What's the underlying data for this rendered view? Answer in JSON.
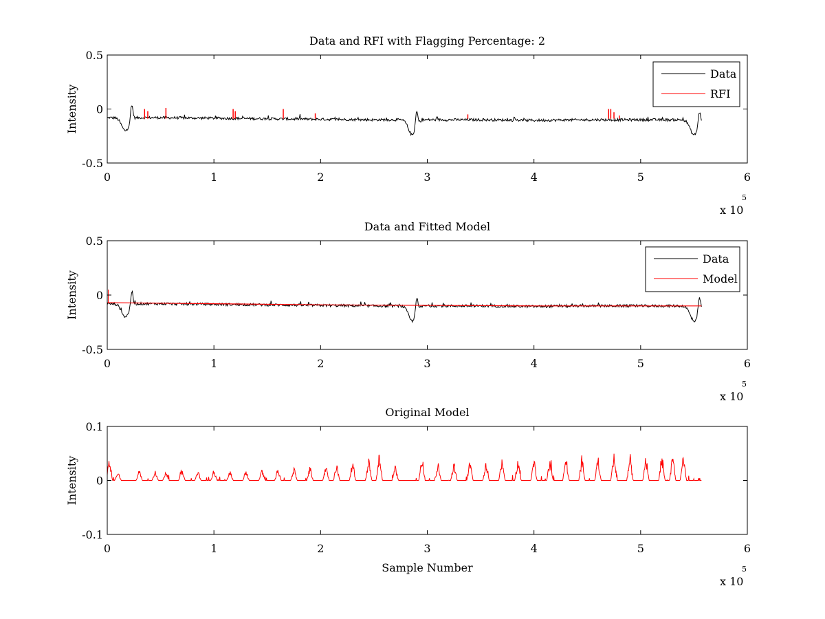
{
  "figure": {
    "background": "#ffffff",
    "data_color": "#000000",
    "model_color": "#ff0000"
  },
  "chart_data": [
    {
      "type": "line",
      "title": "Data and RFI with Flagging Percentage: 2",
      "xlabel": "",
      "ylabel": "Intensity",
      "xlim": [
        0,
        6
      ],
      "ylim": [
        -0.5,
        0.5
      ],
      "xticks": [
        "0",
        "1",
        "2",
        "3",
        "4",
        "5",
        "6"
      ],
      "yticks": [
        "0.5",
        "0",
        "-0.5"
      ],
      "x_multiplier": {
        "base": "x 10",
        "exponent": "5"
      },
      "legend": {
        "position": "top-right",
        "entries": [
          "Data",
          "RFI"
        ]
      },
      "series": [
        {
          "name": "Data",
          "color": "#000000",
          "baseline_x": [
            0,
            0.1,
            0.5,
            1.0,
            1.5,
            2.0,
            2.5,
            2.8,
            3.0,
            3.5,
            4.0,
            4.5,
            5.0,
            5.4,
            5.55
          ],
          "baseline_y": [
            -0.08,
            -0.08,
            -0.08,
            -0.085,
            -0.09,
            -0.095,
            -0.1,
            -0.1,
            -0.1,
            -0.1,
            -0.105,
            -0.1,
            -0.1,
            -0.1,
            -0.1
          ],
          "noise": 0.012,
          "dips": [
            {
              "x": 0.17,
              "y": -0.2
            },
            {
              "x": 2.86,
              "y": -0.24
            },
            {
              "x": 5.5,
              "y": -0.24
            }
          ],
          "peaks": [
            {
              "x": 0.23,
              "y": 0.06
            },
            {
              "x": 2.9,
              "y": 0.05
            },
            {
              "x": 5.55,
              "y": 0.02
            }
          ],
          "x_end": 5.57
        },
        {
          "name": "RFI",
          "color": "#ff0000",
          "spikes_x": [
            0.35,
            0.38,
            0.55,
            1.18,
            1.2,
            1.65,
            1.95,
            3.38,
            4.7,
            4.72,
            4.75,
            4.8
          ],
          "spikes_y": [
            0.0,
            -0.02,
            0.01,
            0.0,
            -0.02,
            0.0,
            -0.04,
            -0.05,
            0.0,
            0.0,
            -0.03,
            -0.06
          ]
        }
      ]
    },
    {
      "type": "line",
      "title": "Data and Fitted Model",
      "xlabel": "",
      "ylabel": "Intensity",
      "xlim": [
        0,
        6
      ],
      "ylim": [
        -0.5,
        0.5
      ],
      "xticks": [
        "0",
        "1",
        "2",
        "3",
        "4",
        "5",
        "6"
      ],
      "yticks": [
        "0.5",
        "0",
        "-0.5"
      ],
      "x_multiplier": {
        "base": "x 10",
        "exponent": "5"
      },
      "legend": {
        "position": "top-right",
        "entries": [
          "Data",
          "Model"
        ]
      },
      "series": [
        {
          "name": "Data",
          "color": "#000000",
          "baseline_x": [
            0,
            0.1,
            0.5,
            1.0,
            1.5,
            2.0,
            2.5,
            2.8,
            3.0,
            3.5,
            4.0,
            4.5,
            5.0,
            5.4,
            5.55
          ],
          "baseline_y": [
            -0.08,
            -0.08,
            -0.08,
            -0.085,
            -0.09,
            -0.095,
            -0.1,
            -0.1,
            -0.1,
            -0.1,
            -0.105,
            -0.1,
            -0.1,
            -0.1,
            -0.1
          ],
          "noise": 0.012,
          "dips": [
            {
              "x": 0.17,
              "y": -0.2
            },
            {
              "x": 2.86,
              "y": -0.24
            },
            {
              "x": 5.5,
              "y": -0.24
            }
          ],
          "peaks": [
            {
              "x": 0.23,
              "y": 0.06
            },
            {
              "x": 2.9,
              "y": 0.05
            },
            {
              "x": 5.55,
              "y": 0.02
            }
          ],
          "x_end": 5.57
        },
        {
          "name": "Model",
          "color": "#ff0000",
          "x": [
            0,
            1,
            2,
            3,
            4,
            5,
            5.57
          ],
          "y": [
            -0.07,
            -0.08,
            -0.09,
            -0.095,
            -0.1,
            -0.1,
            -0.1
          ],
          "start_spike": {
            "x": 0.01,
            "y": 0.05
          }
        }
      ]
    },
    {
      "type": "line",
      "title": "Original Model",
      "xlabel": "Sample Number",
      "ylabel": "Intensity",
      "xlim": [
        0,
        6
      ],
      "ylim": [
        -0.1,
        0.1
      ],
      "xticks": [
        "0",
        "1",
        "2",
        "3",
        "4",
        "5",
        "6"
      ],
      "yticks": [
        "0.1",
        "0",
        "-0.1"
      ],
      "x_multiplier": {
        "base": "x 10",
        "exponent": "5"
      },
      "legend": null,
      "series": [
        {
          "color": "#ff0000",
          "peaks_x": [
            0.02,
            0.1,
            0.3,
            0.45,
            0.55,
            0.7,
            0.85,
            1.0,
            1.15,
            1.3,
            1.45,
            1.6,
            1.75,
            1.9,
            2.05,
            2.15,
            2.3,
            2.45,
            2.55,
            2.7,
            2.95,
            3.1,
            3.25,
            3.4,
            3.55,
            3.7,
            3.85,
            4.0,
            4.15,
            4.3,
            4.45,
            4.6,
            4.75,
            4.9,
            5.05,
            5.2,
            5.3,
            5.4
          ],
          "peaks_y": [
            0.048,
            0.02,
            0.022,
            0.02,
            0.02,
            0.02,
            0.02,
            0.022,
            0.02,
            0.02,
            0.022,
            0.025,
            0.028,
            0.03,
            0.03,
            0.035,
            0.04,
            0.045,
            0.055,
            0.03,
            0.055,
            0.035,
            0.038,
            0.04,
            0.04,
            0.045,
            0.045,
            0.046,
            0.048,
            0.05,
            0.05,
            0.05,
            0.052,
            0.052,
            0.05,
            0.052,
            0.052,
            0.055
          ],
          "x_end": 5.57
        }
      ]
    }
  ]
}
